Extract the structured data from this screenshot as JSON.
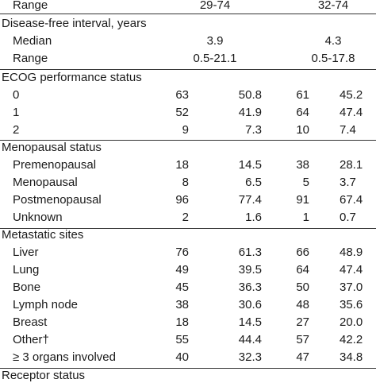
{
  "top_row": {
    "label": "Range",
    "group1": "29-74",
    "group2": "32-74"
  },
  "dfi": {
    "header": "Disease-free interval, years",
    "rows": [
      {
        "label": "Median",
        "group1": "3.9",
        "group2": "4.3"
      },
      {
        "label": "Range",
        "group1": "0.5-21.1",
        "group2": "0.5-17.8"
      }
    ]
  },
  "sections": [
    {
      "header": "ECOG performance status",
      "rows": [
        {
          "label": "0",
          "n1": "63",
          "p1": "50.8",
          "n2": "61",
          "p2": "45.2"
        },
        {
          "label": "1",
          "n1": "52",
          "p1": "41.9",
          "n2": "64",
          "p2": "47.4"
        },
        {
          "label": "2",
          "n1": "9",
          "p1": "7.3",
          "n2": "10",
          "p2": "7.4"
        }
      ]
    },
    {
      "header": "Menopausal status",
      "rows": [
        {
          "label": "Premenopausal",
          "n1": "18",
          "p1": "14.5",
          "n2": "38",
          "p2": "28.1"
        },
        {
          "label": "Menopausal",
          "n1": "8",
          "p1": "6.5",
          "n2": "5",
          "p2": "3.7"
        },
        {
          "label": "Postmenopausal",
          "n1": "96",
          "p1": "77.4",
          "n2": "91",
          "p2": "67.4"
        },
        {
          "label": "Unknown",
          "n1": "2",
          "p1": "1.6",
          "n2": "1",
          "p2": "0.7"
        }
      ]
    },
    {
      "header": "Metastatic sites",
      "rows": [
        {
          "label": "Liver",
          "n1": "76",
          "p1": "61.3",
          "n2": "66",
          "p2": "48.9"
        },
        {
          "label": "Lung",
          "n1": "49",
          "p1": "39.5",
          "n2": "64",
          "p2": "47.4"
        },
        {
          "label": "Bone",
          "n1": "45",
          "p1": "36.3",
          "n2": "50",
          "p2": "37.0"
        },
        {
          "label": "Lymph node",
          "n1": "38",
          "p1": "30.6",
          "n2": "48",
          "p2": "35.6"
        },
        {
          "label": "Breast",
          "n1": "18",
          "p1": "14.5",
          "n2": "27",
          "p2": "20.0"
        },
        {
          "label": "Other†",
          "n1": "55",
          "p1": "44.4",
          "n2": "57",
          "p2": "42.2"
        },
        {
          "label": "≥ 3 organs involved",
          "n1": "40",
          "p1": "32.3",
          "n2": "47",
          "p2": "34.8"
        }
      ]
    }
  ],
  "bottom_header": "Receptor status"
}
